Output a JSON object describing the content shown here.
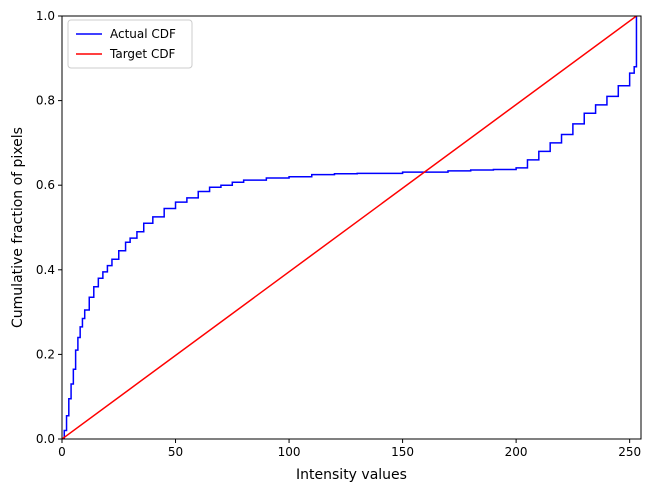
{
  "chart_data": {
    "type": "line",
    "title": "",
    "xlabel": "Intensity values",
    "ylabel": "Cumulative fraction of pixels",
    "xlim": [
      0,
      255
    ],
    "ylim": [
      0.0,
      1.0
    ],
    "xticks": [
      0,
      50,
      100,
      150,
      200,
      250
    ],
    "yticks": [
      0.0,
      0.2,
      0.4,
      0.6,
      0.8,
      1.0
    ],
    "xtick_labels": [
      "0",
      "50",
      "100",
      "150",
      "200",
      "250"
    ],
    "ytick_labels": [
      "0.0",
      "0.2",
      "0.4",
      "0.6",
      "0.8",
      "1.0"
    ],
    "grid": false,
    "legend_position": "top-left",
    "series": [
      {
        "name": "Actual CDF",
        "color": "#0000ff",
        "style": "step",
        "x": [
          0,
          1,
          2,
          3,
          4,
          5,
          6,
          7,
          8,
          9,
          10,
          12,
          14,
          16,
          18,
          20,
          22,
          25,
          28,
          30,
          33,
          36,
          40,
          45,
          50,
          55,
          60,
          65,
          70,
          75,
          80,
          90,
          100,
          110,
          120,
          130,
          150,
          170,
          180,
          190,
          200,
          205,
          210,
          215,
          220,
          225,
          230,
          235,
          240,
          245,
          250,
          252,
          253,
          253
        ],
        "y": [
          0.0,
          0.02,
          0.055,
          0.095,
          0.13,
          0.165,
          0.21,
          0.24,
          0.265,
          0.285,
          0.305,
          0.335,
          0.36,
          0.38,
          0.395,
          0.41,
          0.425,
          0.445,
          0.465,
          0.475,
          0.49,
          0.51,
          0.525,
          0.545,
          0.56,
          0.57,
          0.585,
          0.595,
          0.6,
          0.607,
          0.612,
          0.617,
          0.62,
          0.625,
          0.627,
          0.628,
          0.631,
          0.634,
          0.636,
          0.637,
          0.641,
          0.66,
          0.68,
          0.7,
          0.72,
          0.745,
          0.77,
          0.79,
          0.81,
          0.835,
          0.865,
          0.88,
          0.9,
          1.0
        ]
      },
      {
        "name": "Target CDF",
        "color": "#ff0000",
        "style": "line",
        "x": [
          0,
          253
        ],
        "y": [
          0.0,
          1.0
        ]
      }
    ]
  }
}
